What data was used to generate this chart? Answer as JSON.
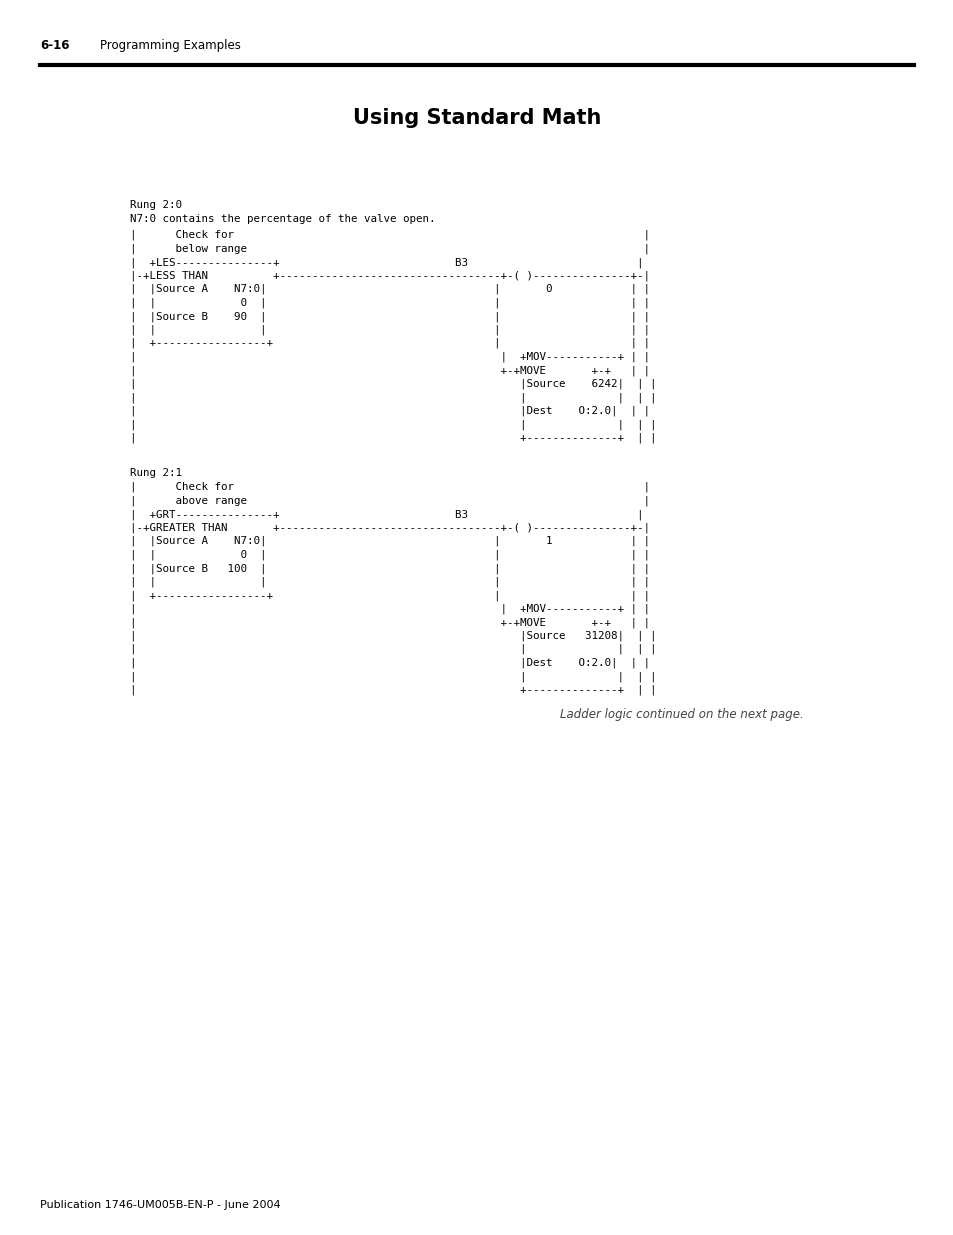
{
  "title": "Using Standard Math",
  "header_left": "6-16",
  "header_right": "Programming Examples",
  "footer": "Publication 1746-UM005B-EN-P - June 2004",
  "background_color": "#ffffff",
  "rung1_label": "Rung 2:0",
  "rung1_desc": "N7:0 contains the percentage of the valve open.",
  "rung2_label": "Rung 2:1",
  "caption": "Ladder logic continued on the next page.",
  "rung1_code": [
    "|      Check for                                                               |",
    "|      below range                                                             |",
    "|  +LES---------------+                           B3                          |",
    "|-+LESS THAN          +----------------------------------+-( )---------------+-|",
    "|  |Source A    N7:0|                                   |       0            | |",
    "|  |             0  |                                   |                    | |",
    "|  |Source B    90  |                                   |                    | |",
    "|  |                |                                   |                    | |",
    "|  +-----------------+                                  |                    | |",
    "|                                                        |  +MOV-----------+ | |",
    "|                                                        +-+MOVE       +-+   | |",
    "|                                                           |Source    6242|  | |",
    "|                                                           |              |  | |",
    "|                                                           |Dest    O:2.0|  | |",
    "|                                                           |              |  | |",
    "|                                                           +--------------+  | |"
  ],
  "rung2_code": [
    "|      Check for                                                               |",
    "|      above range                                                             |",
    "|  +GRT---------------+                           B3                          |",
    "|-+GREATER THAN       +----------------------------------+-( )---------------+-|",
    "|  |Source A    N7:0|                                   |       1            | |",
    "|  |             0  |                                   |                    | |",
    "|  |Source B   100  |                                   |                    | |",
    "|  |                |                                   |                    | |",
    "|  +-----------------+                                  |                    | |",
    "|                                                        |  +MOV-----------+ | |",
    "|                                                        +-+MOVE       +-+   | |",
    "|                                                           |Source   31208|  | |",
    "|                                                           |              |  | |",
    "|                                                           |Dest    O:2.0|  | |",
    "|                                                           |              |  | |",
    "|                                                           +--------------+  | |"
  ]
}
